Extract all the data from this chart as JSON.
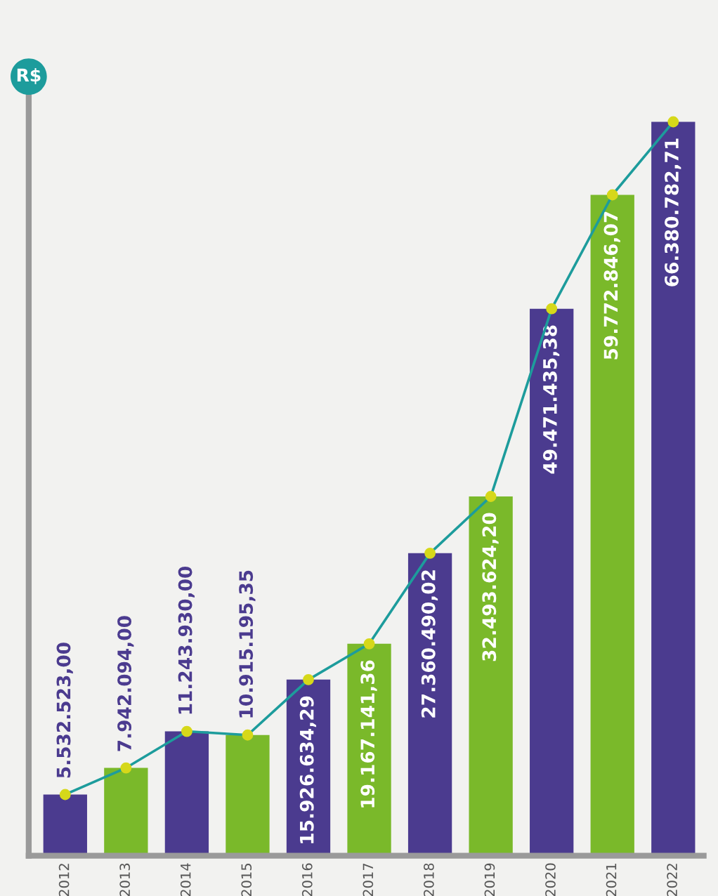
{
  "chart_data": {
    "type": "bar",
    "ylabel": "R$",
    "tick_labels": "x",
    "grid": false,
    "categories": [
      "2012",
      "2013",
      "2014",
      "2015",
      "2016",
      "2017",
      "2018",
      "2019",
      "2020",
      "2021",
      "2022"
    ],
    "series": [
      {
        "colors": [
          "#4b3b8f",
          "#7ab92a",
          "#4b3b8f",
          "#7ab92a",
          "#4b3b8f",
          "#7ab92a",
          "#4b3b8f",
          "#7ab92a",
          "#4b3b8f",
          "#7ab92a",
          "#4b3b8f"
        ],
        "values": [
          5532523.0,
          7942094.0,
          11243930.0,
          10915195.35,
          15926634.29,
          19167141.36,
          27360490.02,
          32493624.2,
          49471435.38,
          59772846.07,
          66380782.71
        ],
        "value_labels": [
          "5.532.523,00",
          "7.942.094,00",
          "11.243.930,00",
          "10.915.195,35",
          "15.926.634,29",
          "19.167.141,36",
          "27.360.490,02",
          "32.493.624,20",
          "49.471.435,38",
          "59.772.846,07",
          "66.380.782,71"
        ]
      },
      {
        "type": "line",
        "color": "#1d9c9c",
        "marker": "circle",
        "colors": [
          "#d6d81a",
          "#d6d81a",
          "#d6d81a",
          "#d6d81a",
          "#d6d81a",
          "#d6d81a",
          "#d6d81a",
          "#d6d81a",
          "#d6d81a",
          "#d6d81a",
          "#d6d81a"
        ],
        "values": [
          5532523.0,
          7942094.0,
          11243930.0,
          10915195.35,
          15926634.29,
          19167141.36,
          27360490.02,
          32493624.2,
          49471435.38,
          59772846.07,
          66380782.71
        ]
      }
    ]
  }
}
